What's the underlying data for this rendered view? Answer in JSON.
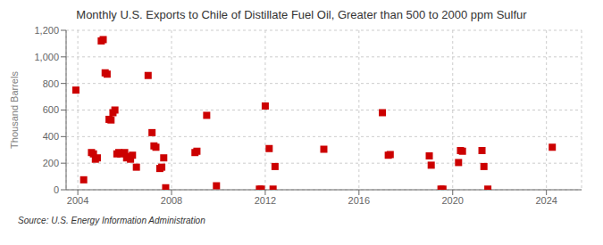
{
  "chart_data": {
    "type": "scatter",
    "title": "Monthly U.S. Exports to Chile of Distillate Fuel Oil, Greater than 500 to 2000 ppm Sulfur",
    "ylabel": "Thousand Barrels",
    "annotations": [
      "Source: U.S. Energy Information Administration"
    ],
    "color": "#cc0000",
    "marker": "square",
    "grid": true,
    "xlim": [
      2003.5,
      2025.5
    ],
    "xticks": [
      2004,
      2008,
      2012,
      2016,
      2020,
      2024
    ],
    "ylim": [
      0,
      1200
    ],
    "yticks": [
      0,
      200,
      400,
      600,
      800,
      {
        "value": 1000,
        "label": "1,000"
      },
      {
        "value": 1200,
        "label": "1,200"
      }
    ],
    "x": [
      2003.917,
      2004.25,
      2004.583,
      2004.667,
      2004.75,
      2004.833,
      2005.0,
      2005.083,
      2005.167,
      2005.25,
      2005.333,
      2005.417,
      2005.5,
      2005.583,
      2005.667,
      2005.75,
      2005.833,
      2006.0,
      2006.083,
      2006.167,
      2006.25,
      2006.333,
      2006.5,
      2007.0,
      2007.167,
      2007.25,
      2007.333,
      2007.5,
      2007.583,
      2007.667,
      2007.75,
      2009.0,
      2009.083,
      2009.5,
      2009.917,
      2011.75,
      2011.833,
      2012.0,
      2012.167,
      2012.333,
      2012.417,
      2014.5,
      2017.0,
      2017.25,
      2017.333,
      2019.0,
      2019.083,
      2019.5,
      2019.583,
      2020.25,
      2020.333,
      2020.417,
      2021.25,
      2021.333,
      2021.5,
      2024.25
    ],
    "values": [
      750,
      75,
      280,
      270,
      230,
      240,
      1120,
      1130,
      880,
      870,
      530,
      525,
      580,
      600,
      270,
      280,
      270,
      280,
      240,
      250,
      230,
      260,
      170,
      860,
      430,
      330,
      320,
      160,
      170,
      240,
      15,
      280,
      290,
      560,
      30,
      5,
      5,
      630,
      310,
      5,
      175,
      305,
      580,
      260,
      265,
      255,
      185,
      5,
      5,
      205,
      295,
      290,
      295,
      175,
      5,
      320
    ]
  }
}
